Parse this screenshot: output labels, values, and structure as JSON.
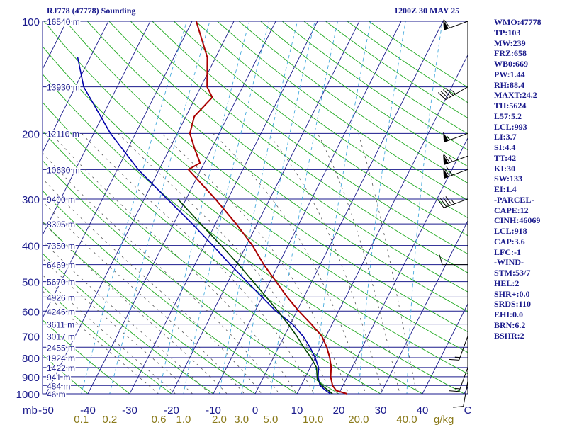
{
  "header": {
    "station": "RJ778 (47778) Sounding",
    "valid": "1200Z 30 MAY 25"
  },
  "indices": [
    "WMO:47778",
    "TP:103",
    "MW:239",
    "FRZ:658",
    "WB0:669",
    "PW:1.44",
    "RH:88.4",
    "MAXT:24.2",
    "TH:5624",
    "L57:5.2",
    "LCL:993",
    "LI:3.7",
    "SI:4.4",
    "TT:42",
    "KI:30",
    "SW:133",
    "EI:1.4",
    "-PARCEL-",
    "CAPE:12",
    "CINH:46069",
    "LCL:918",
    "CAP:3.6",
    "LFC:-1",
    "-WIND-",
    "STM:53/7",
    "HEL:2",
    "SHR+:0.0",
    "SRDS:110",
    "EHI:0.0",
    "BRN:6.2",
    "BSHR:2"
  ],
  "colors": {
    "isobar": "#1a1a8c",
    "isotherm": "#1a1a8c",
    "dry_adiabat": "#22aa22",
    "mixing_ratio": "#44aadd",
    "moist_adiabat": "#555555",
    "temperature": "#aa0000",
    "dewpoint": "#0000aa",
    "parcel": "#004400",
    "wind_barb": "#000000",
    "labels": "#1a1a8c",
    "mixing_labels": "#8a7a1a"
  },
  "chart_data": {
    "type": "line",
    "chart_kind": "skew-T log-P sounding",
    "y_scale": "log",
    "ylim": [
      1000,
      100
    ],
    "pressure_ticks": [
      100,
      200,
      300,
      400,
      500,
      600,
      700,
      800,
      900,
      1000
    ],
    "pressure_unit_label": "mb",
    "height_labels": [
      {
        "p": 100,
        "label": "16540 m"
      },
      {
        "p": 150,
        "label": "13930 m"
      },
      {
        "p": 200,
        "label": "12110 m"
      },
      {
        "p": 250,
        "label": "10630 m"
      },
      {
        "p": 300,
        "label": "9400 m"
      },
      {
        "p": 350,
        "label": "8305 m"
      },
      {
        "p": 400,
        "label": "7350 m"
      },
      {
        "p": 450,
        "label": "6469 m"
      },
      {
        "p": 500,
        "label": "5670 m"
      },
      {
        "p": 550,
        "label": "4926 m"
      },
      {
        "p": 600,
        "label": "4246 m"
      },
      {
        "p": 650,
        "label": "3611 m"
      },
      {
        "p": 700,
        "label": "3017 m"
      },
      {
        "p": 750,
        "label": "2455 m"
      },
      {
        "p": 800,
        "label": "1924 m"
      },
      {
        "p": 850,
        "label": "1422 m"
      },
      {
        "p": 900,
        "label": "941 m"
      },
      {
        "p": 950,
        "label": "484 m"
      },
      {
        "p": 1000,
        "label": "46 m"
      }
    ],
    "temperature_ticks": [
      -50,
      -40,
      -30,
      -20,
      -10,
      0,
      10,
      20,
      30,
      40
    ],
    "mixing_ratio_ticks": [
      "0.1",
      "0.2",
      "0.6",
      "1.0",
      "2.0",
      "3.0",
      "5.0",
      "10.0",
      "20.0",
      "40.0"
    ],
    "mixing_ratio_unit": "g/kg",
    "wind_axis_label": "C",
    "series": [
      {
        "key": "temperature",
        "points": [
          [
            1000,
            22.0
          ],
          [
            980,
            19.0
          ],
          [
            950,
            17.5
          ],
          [
            900,
            16.0
          ],
          [
            850,
            15.0
          ],
          [
            800,
            13.5
          ],
          [
            750,
            11.5
          ],
          [
            700,
            9.0
          ],
          [
            650,
            5.0
          ],
          [
            600,
            0.5
          ],
          [
            550,
            -4.0
          ],
          [
            500,
            -8.5
          ],
          [
            450,
            -13.5
          ],
          [
            400,
            -18.5
          ],
          [
            350,
            -25.0
          ],
          [
            300,
            -33.0
          ],
          [
            250,
            -43.0
          ],
          [
            240,
            -41.0
          ],
          [
            220,
            -44.0
          ],
          [
            200,
            -47.0
          ],
          [
            180,
            -48.0
          ],
          [
            160,
            -46.0
          ],
          [
            150,
            -48.5
          ],
          [
            125,
            -52.0
          ],
          [
            100,
            -59.0
          ]
        ]
      },
      {
        "key": "dewpoint",
        "points": [
          [
            1000,
            18.0
          ],
          [
            980,
            16.5
          ],
          [
            950,
            14.5
          ],
          [
            900,
            13.0
          ],
          [
            850,
            12.0
          ],
          [
            800,
            10.0
          ],
          [
            750,
            7.5
          ],
          [
            700,
            4.5
          ],
          [
            650,
            0.5
          ],
          [
            600,
            -5.0
          ],
          [
            550,
            -10.0
          ],
          [
            500,
            -15.5
          ],
          [
            450,
            -21.5
          ],
          [
            400,
            -28.0
          ],
          [
            350,
            -35.5
          ],
          [
            300,
            -44.5
          ],
          [
            250,
            -55.0
          ],
          [
            200,
            -66.0
          ],
          [
            150,
            -78.0
          ],
          [
            125,
            -83.0
          ]
        ]
      },
      {
        "key": "parcel",
        "points": [
          [
            1000,
            18.5
          ],
          [
            950,
            15.0
          ],
          [
            918,
            13.2
          ],
          [
            850,
            11.5
          ],
          [
            800,
            9.0
          ],
          [
            750,
            6.0
          ],
          [
            700,
            3.0
          ],
          [
            650,
            -0.5
          ],
          [
            600,
            -4.5
          ],
          [
            550,
            -9.0
          ],
          [
            500,
            -14.0
          ],
          [
            450,
            -19.5
          ],
          [
            400,
            -26.0
          ],
          [
            350,
            -33.5
          ],
          [
            300,
            -42.0
          ]
        ]
      }
    ],
    "wind_barbs": [
      {
        "p": 100,
        "dir": 250,
        "spd": 60
      },
      {
        "p": 150,
        "dir": 240,
        "spd": 45
      },
      {
        "p": 200,
        "dir": 250,
        "spd": 55
      },
      {
        "p": 230,
        "dir": 250,
        "spd": 65
      },
      {
        "p": 250,
        "dir": 250,
        "spd": 70
      },
      {
        "p": 300,
        "dir": 250,
        "spd": 45
      },
      {
        "p": 450,
        "dir": 270,
        "spd": 10
      },
      {
        "p": 700,
        "dir": 200,
        "spd": 15
      },
      {
        "p": 850,
        "dir": 200,
        "spd": 15
      },
      {
        "p": 925,
        "dir": 190,
        "spd": 10
      }
    ]
  }
}
